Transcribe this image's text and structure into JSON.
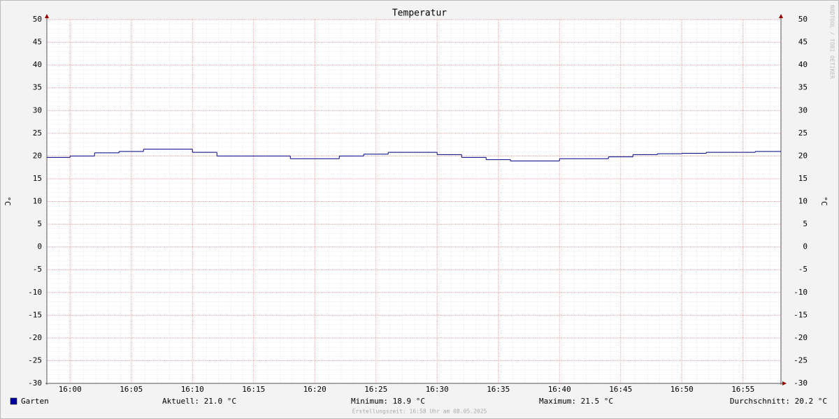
{
  "chart_data": {
    "type": "step",
    "title": "Temperatur",
    "y_label": "°C",
    "watermark": "RRDTOOL / TOBI OETIKER",
    "footer": "Erstellungszeit: 16:58 Uhr am 08.05.2025",
    "x": [
      958,
      960,
      962,
      964,
      966,
      968,
      970,
      972,
      974,
      976,
      978,
      980,
      982,
      984,
      986,
      988,
      990,
      992,
      994,
      996,
      998,
      1000,
      1002,
      1004,
      1006,
      1008,
      1010,
      1012,
      1014,
      1016
    ],
    "series": [
      {
        "name": "Garten",
        "color": "#000080",
        "values": [
          19.7,
          20.0,
          20.7,
          21.0,
          21.5,
          21.5,
          20.8,
          20.0,
          20.0,
          20.0,
          19.4,
          19.4,
          20.0,
          20.4,
          20.8,
          20.8,
          20.3,
          19.7,
          19.2,
          18.9,
          18.9,
          19.4,
          19.4,
          19.8,
          20.3,
          20.5,
          20.6,
          20.8,
          20.8,
          21.0
        ]
      }
    ],
    "legend_swatch_color": "#0000a0",
    "stats": [
      "Aktuell: 21.0 °C",
      "Minimum: 18.9 °C",
      "Maximum: 21.5 °C",
      "Durchschnitt: 20.2 °C"
    ],
    "xlim": [
      958.1,
      1018.1
    ],
    "xticks": [
      {
        "value": 960,
        "label": "16:00"
      },
      {
        "value": 965,
        "label": "16:05"
      },
      {
        "value": 970,
        "label": "16:10"
      },
      {
        "value": 975,
        "label": "16:15"
      },
      {
        "value": 980,
        "label": "16:20"
      },
      {
        "value": 985,
        "label": "16:25"
      },
      {
        "value": 990,
        "label": "16:30"
      },
      {
        "value": 995,
        "label": "16:35"
      },
      {
        "value": 1000,
        "label": "16:40"
      },
      {
        "value": 1005,
        "label": "16:45"
      },
      {
        "value": 1010,
        "label": "16:50"
      },
      {
        "value": 1015,
        "label": "16:55"
      }
    ],
    "ylim": [
      -30,
      50
    ],
    "yticks": [
      -30,
      -25,
      -20,
      -15,
      -10,
      -5,
      0,
      5,
      10,
      15,
      20,
      25,
      30,
      35,
      40,
      45,
      50
    ],
    "grid": true
  }
}
